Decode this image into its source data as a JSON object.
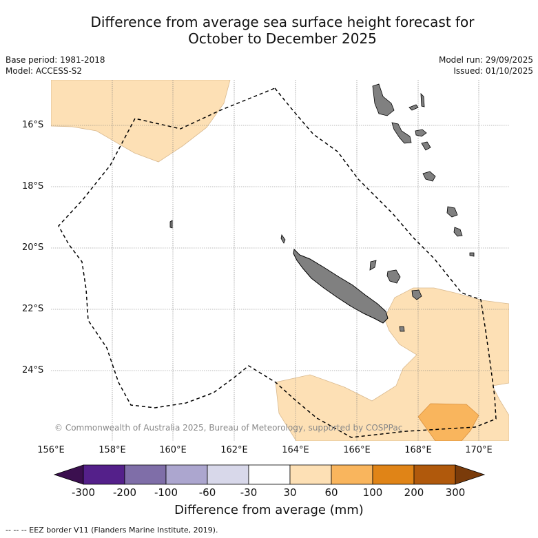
{
  "title": {
    "line1": "Difference from average sea surface height forecast for",
    "line2": "October to December 2025"
  },
  "meta_left": {
    "base_period": "Base period: 1981-2018",
    "model": "Model: ACCESS-S2"
  },
  "meta_right": {
    "model_run": "Model run: 29/09/2025",
    "issued": "Issued: 01/10/2025"
  },
  "map": {
    "lat_labels": [
      "16°S",
      "18°S",
      "20°S",
      "22°S",
      "24°S"
    ],
    "lon_labels": [
      "156°E",
      "158°E",
      "160°E",
      "162°E",
      "164°E",
      "166°E",
      "168°E",
      "170°E"
    ],
    "copyright": "© Commonwealth of Australia 2025, Bureau of Meteorology, supported by COSPPac"
  },
  "colorbar": {
    "ticks": [
      "-300",
      "-200",
      "-100",
      "-60",
      "-30",
      "30",
      "60",
      "100",
      "200",
      "300"
    ],
    "colors": [
      "#3b0f4f",
      "#54208a",
      "#7f6ea8",
      "#aca6cf",
      "#d8d8ea",
      "#ffffff",
      "#fde0b5",
      "#f9b55d",
      "#e08417",
      "#b0590c",
      "#7a3b0a"
    ],
    "label": "Difference from average (mm)"
  },
  "footnote": "--  --  -- EEZ border V11 (Flanders Marine Institute, 2019)."
}
